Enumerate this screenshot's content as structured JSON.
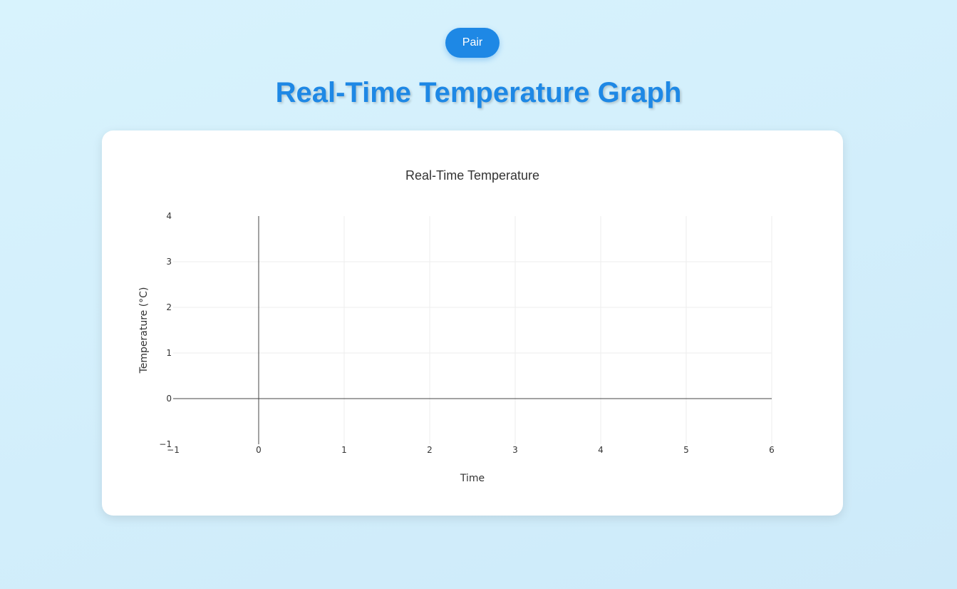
{
  "header": {
    "pair_label": "Pair",
    "title": "Real-Time Temperature Graph"
  },
  "colors": {
    "accent": "#1e88e5",
    "background": "#d5f1fc",
    "card": "#ffffff",
    "grid": "#eeeeee",
    "zeroline": "#444444"
  },
  "chart_data": {
    "type": "line",
    "title": "Real-Time Temperature",
    "xlabel": "Time",
    "ylabel": "Temperature (°C)",
    "xlim": [
      -1,
      6
    ],
    "ylim": [
      -1,
      4
    ],
    "x_ticks": [
      "−1",
      "0",
      "1",
      "2",
      "3",
      "4",
      "5",
      "6"
    ],
    "y_ticks": [
      "−1",
      "0",
      "1",
      "2",
      "3",
      "4"
    ],
    "grid": true,
    "series": [
      {
        "x": [],
        "y": []
      }
    ]
  }
}
